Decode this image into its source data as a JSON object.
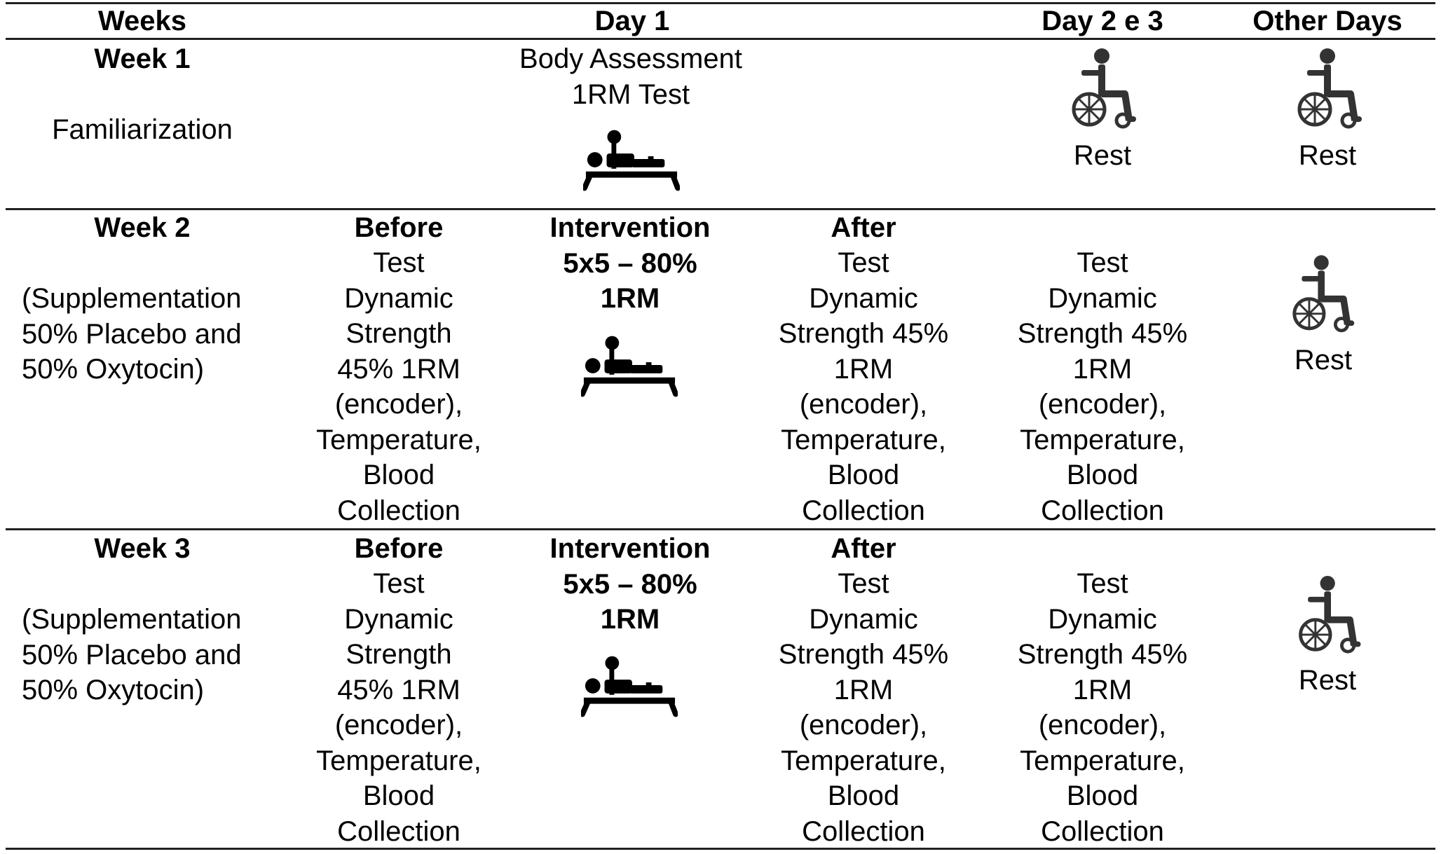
{
  "header": {
    "weeks": "Weeks",
    "day1": "Day 1",
    "day23": "Day 2 e 3",
    "other": "Other Days"
  },
  "rows": [
    {
      "week": "Week 1",
      "desc": "Familiarization",
      "day1": "Body Assessment\n1RM Test",
      "day1_icon": "bench-press-icon",
      "day23": "Rest",
      "day23_icon": "wheelchair-icon",
      "other": "Rest",
      "other_icon": "wheelchair-icon"
    },
    {
      "week": "Week 2",
      "desc": "(Supplementation\n50% Placebo and\n50% Oxytocin)",
      "before_title": "Before",
      "before": "Test\nDynamic\nStrength\n45% 1RM\n(encoder),\nTemperature,\nBlood\nCollection",
      "intervention": "Intervention\n5x5 – 80%\n1RM",
      "intervention_icon": "bench-press-icon",
      "after_title": "After",
      "after": "Test\nDynamic\nStrength 45%\n1RM\n(encoder),\nTemperature,\nBlood\nCollection",
      "day23": "Test\nDynamic\nStrength 45%\n1RM\n(encoder),\nTemperature,\nBlood\nCollection",
      "other": "Rest",
      "other_icon": "wheelchair-icon"
    },
    {
      "week": "Week 3",
      "desc": "(Supplementation\n50% Placebo and\n50% Oxytocin)",
      "before_title": "Before",
      "before": "Test\nDynamic\nStrength\n45% 1RM\n(encoder),\nTemperature,\nBlood\nCollection",
      "intervention": "Intervention\n5x5 – 80%\n1RM",
      "intervention_icon": "bench-press-icon",
      "after_title": "After",
      "after": "Test\nDynamic\nStrength 45%\n1RM\n(encoder),\nTemperature,\nBlood\nCollection",
      "day23": "Test\nDynamic\nStrength 45%\n1RM\n(encoder),\nTemperature,\nBlood\nCollection",
      "other": "Rest",
      "other_icon": "wheelchair-icon"
    }
  ]
}
